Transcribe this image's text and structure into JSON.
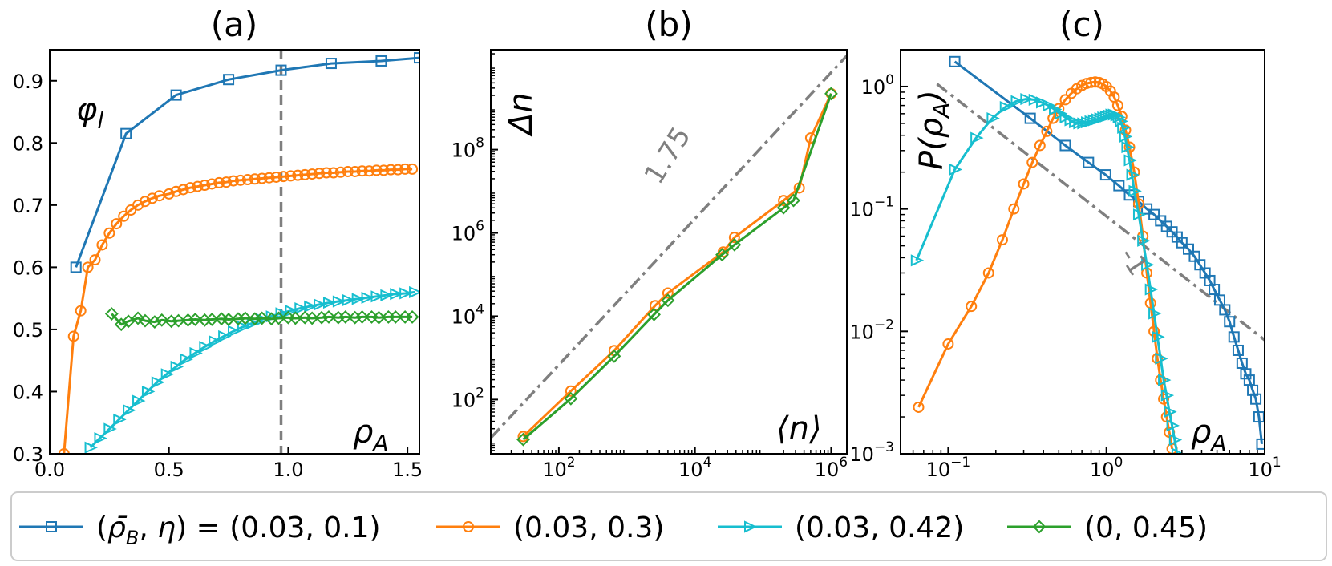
{
  "colors": {
    "blue": "#1f77b4",
    "orange": "#ff7f0e",
    "cyan": "#17becf",
    "green": "#2ca02c",
    "gray": "#7f7f7f"
  },
  "legend": [
    {
      "label": "(ρ̄_B, η) = (0.03, 0.1)",
      "color": "#1f77b4",
      "marker": "square"
    },
    {
      "label": "(0.03, 0.3)",
      "color": "#ff7f0e",
      "marker": "circle"
    },
    {
      "label": "(0.03, 0.42)",
      "color": "#17becf",
      "marker": "triangle-right"
    },
    {
      "label": "(0, 0.45)",
      "color": "#2ca02c",
      "marker": "diamond"
    }
  ],
  "chart_data": [
    {
      "id": "a",
      "title": "(a)",
      "type": "line",
      "xscale": "linear",
      "yscale": "linear",
      "xlabel": "ρ_A",
      "ylabel": "φ_l",
      "xlim": [
        0.0,
        1.55
      ],
      "ylim": [
        0.3,
        0.95
      ],
      "xticks": [
        0.0,
        0.5,
        1.0,
        1.5
      ],
      "xtick_labels": [
        "0.0",
        "0.5",
        "1.0",
        "1.5"
      ],
      "yticks": [
        0.3,
        0.4,
        0.5,
        0.6,
        0.7,
        0.8,
        0.9
      ],
      "ytick_labels": [
        "0.3",
        "0.4",
        "0.5",
        "0.6",
        "0.7",
        "0.8",
        "0.9"
      ],
      "vline": 0.97,
      "series": [
        {
          "name": "(0.03, 0.1)",
          "color": "blue",
          "marker": "square",
          "x": [
            0.11,
            0.32,
            0.53,
            0.75,
            0.97,
            1.18,
            1.39,
            1.55
          ],
          "y": [
            0.6,
            0.815,
            0.877,
            0.902,
            0.917,
            0.928,
            0.932,
            0.937
          ]
        },
        {
          "name": "(0.03, 0.3)",
          "color": "orange",
          "marker": "circle",
          "x": [
            0.06,
            0.1,
            0.13,
            0.16,
            0.19,
            0.22,
            0.25,
            0.28,
            0.31,
            0.34,
            0.37,
            0.4,
            0.43,
            0.46,
            0.5,
            0.53,
            0.56,
            0.59,
            0.62,
            0.65,
            0.68,
            0.71,
            0.74,
            0.77,
            0.8,
            0.83,
            0.86,
            0.89,
            0.92,
            0.95,
            0.98,
            1.01,
            1.04,
            1.07,
            1.1,
            1.13,
            1.16,
            1.19,
            1.22,
            1.25,
            1.28,
            1.31,
            1.34,
            1.37,
            1.4,
            1.43,
            1.46,
            1.49,
            1.52
          ],
          "y": [
            0.3,
            0.489,
            0.53,
            0.6,
            0.612,
            0.636,
            0.655,
            0.67,
            0.682,
            0.692,
            0.7,
            0.706,
            0.711,
            0.715,
            0.718,
            0.722,
            0.725,
            0.728,
            0.73,
            0.732,
            0.734,
            0.736,
            0.737,
            0.739,
            0.74,
            0.741,
            0.742,
            0.743,
            0.744,
            0.745,
            0.746,
            0.747,
            0.748,
            0.749,
            0.75,
            0.751,
            0.752,
            0.752,
            0.753,
            0.754,
            0.754,
            0.755,
            0.755,
            0.756,
            0.756,
            0.757,
            0.757,
            0.758,
            0.758
          ]
        },
        {
          "name": "(0.03, 0.42)",
          "color": "cyan",
          "marker": "triangle-right",
          "x": [
            0.17,
            0.21,
            0.25,
            0.29,
            0.33,
            0.37,
            0.41,
            0.45,
            0.49,
            0.53,
            0.57,
            0.61,
            0.65,
            0.69,
            0.73,
            0.77,
            0.81,
            0.85,
            0.89,
            0.93,
            0.97,
            1.01,
            1.05,
            1.09,
            1.13,
            1.17,
            1.21,
            1.25,
            1.29,
            1.33,
            1.37,
            1.41,
            1.45,
            1.49,
            1.53
          ],
          "y": [
            0.31,
            0.325,
            0.34,
            0.355,
            0.37,
            0.385,
            0.4,
            0.415,
            0.428,
            0.44,
            0.452,
            0.462,
            0.472,
            0.481,
            0.489,
            0.497,
            0.504,
            0.51,
            0.516,
            0.521,
            0.526,
            0.53,
            0.534,
            0.537,
            0.54,
            0.543,
            0.545,
            0.547,
            0.549,
            0.551,
            0.553,
            0.555,
            0.557,
            0.558,
            0.56
          ]
        },
        {
          "name": "(0, 0.45)",
          "color": "green",
          "marker": "diamond",
          "x": [
            0.26,
            0.3,
            0.33,
            0.37,
            0.4,
            0.44,
            0.47,
            0.51,
            0.54,
            0.58,
            0.61,
            0.65,
            0.68,
            0.72,
            0.75,
            0.79,
            0.82,
            0.86,
            0.89,
            0.93,
            0.96,
            1.0,
            1.03,
            1.07,
            1.1,
            1.14,
            1.17,
            1.21,
            1.24,
            1.28,
            1.31,
            1.35,
            1.38,
            1.42,
            1.45,
            1.49,
            1.52
          ],
          "y": [
            0.525,
            0.508,
            0.513,
            0.518,
            0.514,
            0.512,
            0.515,
            0.513,
            0.514,
            0.515,
            0.516,
            0.515,
            0.516,
            0.517,
            0.516,
            0.517,
            0.518,
            0.517,
            0.518,
            0.517,
            0.518,
            0.519,
            0.518,
            0.519,
            0.518,
            0.519,
            0.52,
            0.519,
            0.52,
            0.519,
            0.52,
            0.52,
            0.519,
            0.52,
            0.52,
            0.52,
            0.52
          ]
        }
      ]
    },
    {
      "id": "b",
      "title": "(b)",
      "type": "line",
      "xscale": "log",
      "yscale": "log",
      "xlabel": "⟨n⟩",
      "ylabel": "Δn",
      "xlim": [
        10,
        1700000
      ],
      "ylim": [
        5,
        25000000000
      ],
      "xticks": [
        100,
        10000,
        1000000
      ],
      "xtick_base": [
        "10",
        "10",
        "10"
      ],
      "xtick_exp": [
        "2",
        "4",
        "6"
      ],
      "yticks": [
        100,
        10000,
        1000000,
        100000000
      ],
      "ytick_base": [
        "10",
        "10",
        "10",
        "10"
      ],
      "ytick_exp": [
        "2",
        "4",
        "6",
        "8"
      ],
      "guide": {
        "x": [
          10,
          1700000
        ],
        "y": [
          12,
          18000000000
        ],
        "label": "1.75",
        "slope": 1.75
      },
      "series": [
        {
          "name": "(0.03, 0.3)",
          "color": "orange",
          "marker": "circle",
          "x": [
            30,
            150,
            650,
            2600,
            4000,
            26000,
            38000,
            200000,
            340000,
            500000,
            1000000
          ],
          "y": [
            13,
            160,
            1500,
            18000,
            36000,
            350000,
            780000,
            6000000,
            12000000,
            190000000,
            2200000000
          ]
        },
        {
          "name": "(0, 0.45)",
          "color": "green",
          "marker": "diamond",
          "x": [
            30,
            150,
            650,
            2500,
            4000,
            25000,
            38000,
            200000,
            280000,
            1000000
          ],
          "y": [
            11,
            105,
            1100,
            11000,
            24000,
            300000,
            520000,
            4000000,
            6000000,
            2200000000
          ]
        }
      ]
    },
    {
      "id": "c",
      "title": "(c)",
      "type": "line",
      "xscale": "log",
      "yscale": "log",
      "xlabel": "ρ_A",
      "ylabel": "P(ρ_A)",
      "xlim": [
        0.05,
        10
      ],
      "ylim": [
        0.001,
        2.0
      ],
      "xticks": [
        0.1,
        1,
        10
      ],
      "xtick_base": [
        "10",
        "10",
        "10"
      ],
      "xtick_exp": [
        "−1",
        "0",
        "1"
      ],
      "yticks": [
        0.001,
        0.01,
        0.1,
        1
      ],
      "ytick_base": [
        "10",
        "10",
        "10",
        "10"
      ],
      "ytick_exp": [
        "−3",
        "−2",
        "−1",
        "0"
      ],
      "guide": {
        "x": [
          0.085,
          10
        ],
        "y": [
          1.05,
          0.0085
        ],
        "label": "-1",
        "slope": -1
      },
      "series": [
        {
          "name": "(0.03, 0.1)",
          "color": "blue",
          "marker": "square",
          "x": [
            0.11,
            0.33,
            0.55,
            0.77,
            0.99,
            1.2,
            1.4,
            1.6,
            1.8,
            2.0,
            2.2,
            2.4,
            2.6,
            2.8,
            3.0,
            3.3,
            3.6,
            3.9,
            4.2,
            4.5,
            4.8,
            5.2,
            5.6,
            6.0,
            6.4,
            6.8,
            7.2,
            7.6,
            8.0,
            8.4,
            8.8,
            9.2,
            9.6
          ],
          "y": [
            1.6,
            0.55,
            0.33,
            0.24,
            0.19,
            0.155,
            0.13,
            0.115,
            0.1,
            0.09,
            0.08,
            0.072,
            0.065,
            0.059,
            0.053,
            0.047,
            0.041,
            0.035,
            0.03,
            0.026,
            0.022,
            0.018,
            0.015,
            0.012,
            0.009,
            0.007,
            0.0055,
            0.0045,
            0.004,
            0.0033,
            0.0028,
            0.002,
            0.0012
          ]
        },
        {
          "name": "(0.03, 0.3)",
          "color": "orange",
          "marker": "circle",
          "x": [
            0.065,
            0.1,
            0.14,
            0.18,
            0.22,
            0.26,
            0.3,
            0.34,
            0.38,
            0.42,
            0.46,
            0.5,
            0.55,
            0.6,
            0.65,
            0.7,
            0.75,
            0.8,
            0.85,
            0.9,
            0.95,
            1.0,
            1.06,
            1.12,
            1.18,
            1.25,
            1.32,
            1.4,
            1.5,
            1.6,
            1.7,
            1.8,
            1.9,
            2.0,
            2.1,
            2.2,
            2.3,
            2.4,
            2.5,
            2.6
          ],
          "y": [
            0.0024,
            0.0079,
            0.016,
            0.03,
            0.056,
            0.1,
            0.16,
            0.24,
            0.33,
            0.43,
            0.55,
            0.66,
            0.78,
            0.88,
            0.96,
            1.02,
            1.06,
            1.08,
            1.09,
            1.08,
            1.05,
            1.0,
            0.92,
            0.82,
            0.7,
            0.57,
            0.44,
            0.32,
            0.2,
            0.11,
            0.06,
            0.03,
            0.017,
            0.01,
            0.006,
            0.004,
            0.0028,
            0.002,
            0.0015,
            0.0011
          ]
        },
        {
          "name": "(0.03, 0.42)",
          "color": "cyan",
          "marker": "triangle-right",
          "x": [
            0.063,
            0.11,
            0.15,
            0.19,
            0.23,
            0.27,
            0.31,
            0.35,
            0.39,
            0.43,
            0.47,
            0.51,
            0.55,
            0.59,
            0.63,
            0.67,
            0.71,
            0.75,
            0.79,
            0.83,
            0.87,
            0.91,
            0.95,
            0.99,
            1.03,
            1.07,
            1.11,
            1.15,
            1.19,
            1.23,
            1.27,
            1.31,
            1.35,
            1.4,
            1.45,
            1.5,
            1.6,
            1.7,
            1.8,
            1.9,
            2.0,
            2.1,
            2.2,
            2.3,
            2.4,
            2.5,
            2.6,
            2.7,
            2.8
          ],
          "y": [
            0.038,
            0.21,
            0.38,
            0.55,
            0.68,
            0.76,
            0.79,
            0.78,
            0.74,
            0.7,
            0.65,
            0.6,
            0.56,
            0.53,
            0.51,
            0.5,
            0.5,
            0.51,
            0.52,
            0.53,
            0.54,
            0.55,
            0.56,
            0.57,
            0.58,
            0.59,
            0.59,
            0.58,
            0.56,
            0.52,
            0.46,
            0.39,
            0.32,
            0.25,
            0.19,
            0.14,
            0.09,
            0.055,
            0.035,
            0.022,
            0.014,
            0.009,
            0.006,
            0.004,
            0.003,
            0.0022,
            0.0017,
            0.0013,
            0.001
          ]
        }
      ]
    }
  ]
}
